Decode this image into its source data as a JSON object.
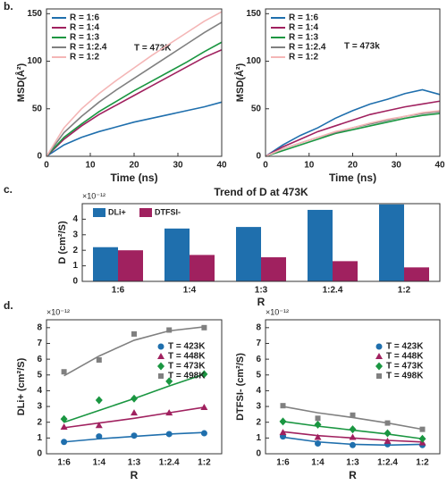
{
  "chart_data": [
    {
      "type": "line",
      "panel_label": "b.",
      "xlabel": "Time (ns)",
      "ylabel": "MSD(Å²)",
      "annotation": "T = 473K",
      "x": [
        0,
        4,
        8,
        12,
        16,
        20,
        24,
        28,
        32,
        36,
        40
      ],
      "xlim": [
        0,
        40
      ],
      "xticks": [
        0,
        10,
        20,
        30,
        40
      ],
      "ylim": [
        0,
        155
      ],
      "yticks": [
        0,
        50,
        100,
        150
      ],
      "legend": "upper left",
      "series": [
        {
          "name": "R = 1:6",
          "color": "#1f6fad",
          "values": [
            0,
            12,
            20,
            26,
            31,
            36,
            40,
            44,
            48,
            52,
            57
          ]
        },
        {
          "name": "R = 1:4",
          "color": "#a0215f",
          "values": [
            0,
            18,
            32,
            44,
            54,
            64,
            74,
            84,
            94,
            104,
            112
          ]
        },
        {
          "name": "R = 1:3",
          "color": "#1a9641",
          "values": [
            0,
            20,
            34,
            47,
            58,
            69,
            79,
            89,
            99,
            110,
            120
          ]
        },
        {
          "name": "R = 1:2.4",
          "color": "#808080",
          "values": [
            0,
            25,
            42,
            57,
            70,
            82,
            94,
            106,
            118,
            130,
            141
          ]
        },
        {
          "name": "R = 1:2",
          "color": "#f4b6b6",
          "values": [
            0,
            30,
            50,
            66,
            80,
            93,
            106,
            118,
            130,
            142,
            152
          ]
        }
      ]
    },
    {
      "type": "line",
      "xlabel": "Time (ns)",
      "ylabel": "MSD(Å²)",
      "annotation": "T = 473k",
      "x": [
        0,
        4,
        8,
        12,
        16,
        20,
        24,
        28,
        32,
        36,
        40
      ],
      "xlim": [
        0,
        40
      ],
      "xticks": [
        0,
        10,
        20,
        30,
        40
      ],
      "ylim": [
        0,
        155
      ],
      "yticks": [
        0,
        50,
        100,
        150
      ],
      "legend": "upper left",
      "series": [
        {
          "name": "R = 1:6",
          "color": "#1f6fad",
          "values": [
            0,
            12,
            22,
            30,
            40,
            48,
            55,
            60,
            66,
            70,
            65
          ]
        },
        {
          "name": "R = 1:4",
          "color": "#a0215f",
          "values": [
            0,
            10,
            18,
            26,
            32,
            38,
            44,
            48,
            52,
            55,
            58
          ]
        },
        {
          "name": "R = 1:3",
          "color": "#1a9641",
          "values": [
            0,
            6,
            12,
            18,
            24,
            28,
            32,
            36,
            40,
            43,
            45
          ]
        },
        {
          "name": "R = 1:2.4",
          "color": "#808080",
          "values": [
            0,
            8,
            14,
            20,
            25,
            30,
            34,
            38,
            42,
            45,
            47
          ]
        },
        {
          "name": "R = 1:2",
          "color": "#f4b6b6",
          "values": [
            0,
            8,
            14,
            20,
            26,
            30,
            35,
            39,
            42,
            46,
            48
          ]
        }
      ]
    },
    {
      "type": "bar",
      "panel_label": "c.",
      "title": "Trend of D at 473K",
      "xlabel": "R",
      "ylabel": "D (cm²/S)",
      "multiplier": "×10⁻¹²",
      "categories": [
        "1:6",
        "1:4",
        "1:3",
        "1:2.4",
        "1:2"
      ],
      "ylim": [
        0,
        5
      ],
      "yticks": [
        0,
        1,
        2,
        3,
        4
      ],
      "legend": "upper left",
      "series": [
        {
          "name": "DLi+",
          "color": "#1f6fad",
          "values": [
            2.2,
            3.4,
            3.5,
            4.6,
            4.95
          ]
        },
        {
          "name": "DTFSI-",
          "color": "#a0215f",
          "values": [
            2.0,
            1.7,
            1.55,
            1.3,
            0.9
          ]
        }
      ]
    },
    {
      "type": "scatter",
      "panel_label": "d.",
      "xlabel": "R",
      "ylabel": "DLi+ (cm²/S)",
      "multiplier": "×10⁻¹²",
      "categories": [
        "1:6",
        "1:4",
        "1:3",
        "1:2.4",
        "1:2"
      ],
      "ylim": [
        0,
        8.5
      ],
      "yticks": [
        0,
        1,
        2,
        3,
        4,
        5,
        6,
        7,
        8
      ],
      "legend": "upper right",
      "series": [
        {
          "name": "T = 423K",
          "color": "#1f6fad",
          "marker": "circle",
          "values": [
            0.75,
            1.1,
            1.15,
            1.25,
            1.3
          ],
          "fit": [
            0.75,
            0.95,
            1.1,
            1.25,
            1.35
          ]
        },
        {
          "name": "T = 448K",
          "color": "#a0215f",
          "marker": "triangle",
          "values": [
            1.7,
            1.8,
            2.6,
            2.6,
            2.95
          ],
          "fit": [
            1.65,
            1.95,
            2.25,
            2.6,
            2.95
          ]
        },
        {
          "name": "T = 473K",
          "color": "#1a9641",
          "marker": "diamond",
          "values": [
            2.2,
            3.4,
            3.5,
            4.6,
            5.05
          ],
          "fit": [
            2.0,
            2.75,
            3.5,
            4.3,
            5.05
          ]
        },
        {
          "name": "T = 498K",
          "color": "#808080",
          "marker": "square",
          "values": [
            5.2,
            5.95,
            7.6,
            7.85,
            8.0
          ],
          "fit": [
            4.95,
            6.2,
            7.2,
            7.8,
            8.05
          ]
        }
      ]
    },
    {
      "type": "scatter",
      "xlabel": "R",
      "ylabel": "DTFSI- (cm²/S)",
      "multiplier": "×10⁻¹²",
      "categories": [
        "1:6",
        "1:4",
        "1:3",
        "1:2.4",
        "1:2"
      ],
      "ylim": [
        0,
        8.5
      ],
      "yticks": [
        0,
        1,
        2,
        3,
        4,
        5,
        6,
        7,
        8
      ],
      "legend": "upper right",
      "series": [
        {
          "name": "T = 423K",
          "color": "#1f6fad",
          "marker": "circle",
          "values": [
            1.1,
            0.65,
            0.55,
            0.6,
            0.55
          ],
          "fit": [
            1.05,
            0.75,
            0.6,
            0.55,
            0.6
          ]
        },
        {
          "name": "T = 448K",
          "color": "#a0215f",
          "marker": "triangle",
          "values": [
            1.35,
            1.05,
            1.05,
            0.8,
            0.7
          ],
          "fit": [
            1.4,
            1.15,
            1.0,
            0.85,
            0.75
          ]
        },
        {
          "name": "T = 473K",
          "color": "#1a9641",
          "marker": "diamond",
          "values": [
            2.05,
            1.85,
            1.55,
            1.3,
            0.95
          ],
          "fit": [
            2.05,
            1.75,
            1.5,
            1.25,
            0.95
          ]
        },
        {
          "name": "T = 498K",
          "color": "#808080",
          "marker": "square",
          "values": [
            3.05,
            2.25,
            2.45,
            1.95,
            1.55
          ],
          "fit": [
            3.0,
            2.6,
            2.3,
            1.95,
            1.55
          ]
        }
      ]
    }
  ]
}
